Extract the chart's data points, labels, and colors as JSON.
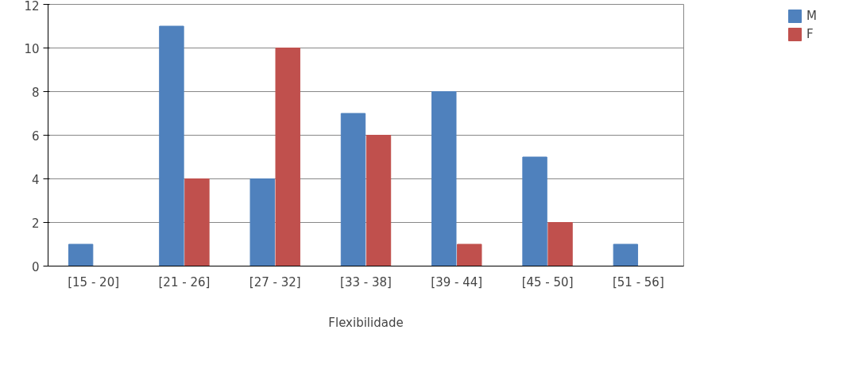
{
  "chart_data": {
    "type": "bar",
    "xlabel": "Flexibilidade",
    "categories": [
      "[15 - 20]",
      "[21 - 26]",
      "[27 - 32]",
      "[33 - 38]",
      "[39 - 44]",
      "[45 - 50]",
      "[51 - 56]"
    ],
    "series": [
      {
        "name": "M",
        "color": "#4f81bd",
        "values": [
          1,
          11,
          4,
          7,
          8,
          5,
          1
        ]
      },
      {
        "name": "F",
        "color": "#c0504d",
        "values": [
          0,
          4,
          10,
          6,
          1,
          2,
          0
        ]
      }
    ],
    "ylim": [
      0,
      12
    ],
    "yticks": [
      0,
      2,
      4,
      6,
      8,
      10,
      12
    ],
    "grid": "y",
    "legend": "right"
  }
}
